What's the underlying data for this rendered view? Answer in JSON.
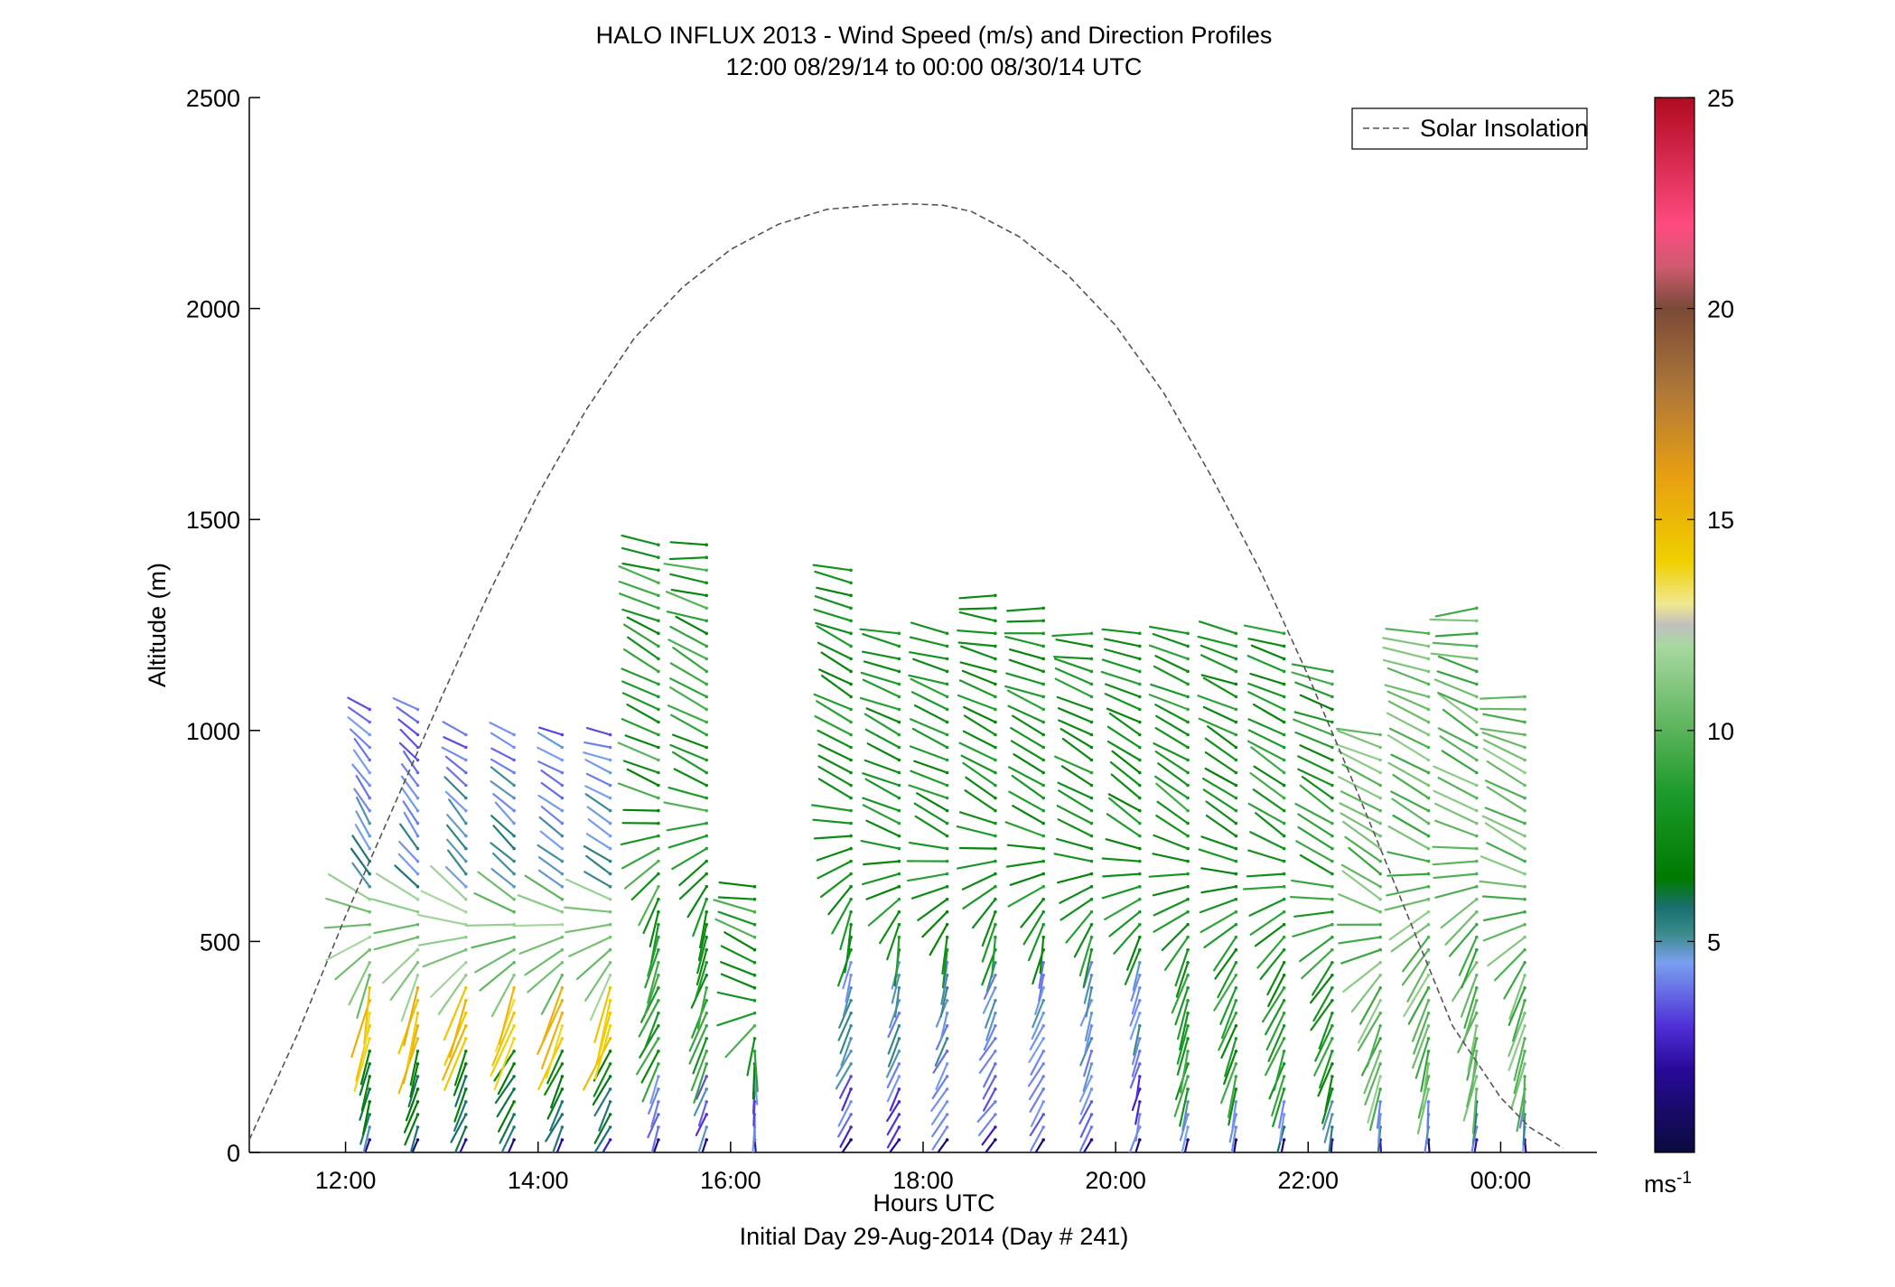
{
  "chart_data": {
    "type": "scatter",
    "title": "HALO INFLUX 2013 - Wind Speed (m/s) and Direction Profiles",
    "subtitle": "12:00 08/29/14 to 00:00 08/30/14  UTC",
    "xlabel": "Hours UTC",
    "xlabel2": "Initial Day 29-Aug-2014 (Day # 241)",
    "ylabel": "Altitude (m)",
    "xlim": [
      11.0,
      25.0
    ],
    "ylim": [
      0,
      2500
    ],
    "x_ticks": [
      {
        "value": 12,
        "label": "12:00"
      },
      {
        "value": 14,
        "label": "14:00"
      },
      {
        "value": 16,
        "label": "16:00"
      },
      {
        "value": 18,
        "label": "18:00"
      },
      {
        "value": 20,
        "label": "20:00"
      },
      {
        "value": 22,
        "label": "22:00"
      },
      {
        "value": 24,
        "label": "00:00"
      }
    ],
    "y_ticks": [
      {
        "value": 0,
        "label": "0"
      },
      {
        "value": 500,
        "label": "500"
      },
      {
        "value": 1000,
        "label": "1000"
      },
      {
        "value": 1500,
        "label": "1500"
      },
      {
        "value": 2000,
        "label": "2000"
      },
      {
        "value": 2500,
        "label": "2500"
      }
    ],
    "legend": {
      "position": "top-right",
      "entries": [
        "Solar Insolation"
      ]
    },
    "colorbar": {
      "range": [
        0,
        25
      ],
      "ticks": [
        {
          "value": 5,
          "label": "5"
        },
        {
          "value": 10,
          "label": "10"
        },
        {
          "value": 15,
          "label": "15"
        },
        {
          "value": 20,
          "label": "20"
        },
        {
          "value": 25,
          "label": "25"
        }
      ],
      "unit_label": "ms",
      "unit_exp": "-1",
      "stops": [
        {
          "v": 0,
          "color": "#0a0a3c"
        },
        {
          "v": 2,
          "color": "#2a0a9a"
        },
        {
          "v": 3,
          "color": "#5030d8"
        },
        {
          "v": 4.5,
          "color": "#7aa0f0"
        },
        {
          "v": 5.2,
          "color": "#3a8a8a"
        },
        {
          "v": 5.8,
          "color": "#1a7070"
        },
        {
          "v": 6.5,
          "color": "#007a00"
        },
        {
          "v": 8.5,
          "color": "#1c9a2a"
        },
        {
          "v": 10,
          "color": "#5ab35a"
        },
        {
          "v": 12,
          "color": "#a8d8a0"
        },
        {
          "v": 12.5,
          "color": "#c0c0c0"
        },
        {
          "v": 13,
          "color": "#f0e890"
        },
        {
          "v": 14,
          "color": "#f0d000"
        },
        {
          "v": 16,
          "color": "#e8a010"
        },
        {
          "v": 18,
          "color": "#b07838"
        },
        {
          "v": 20,
          "color": "#7a4a38"
        },
        {
          "v": 21,
          "color": "#d05a70"
        },
        {
          "v": 22,
          "color": "#ff4a80"
        },
        {
          "v": 25,
          "color": "#b00a20"
        }
      ]
    },
    "solar_insolation": {
      "x": [
        11.0,
        11.5,
        12.0,
        12.5,
        13.0,
        13.5,
        14.0,
        14.5,
        15.0,
        15.5,
        16.0,
        16.5,
        17.0,
        17.5,
        17.85,
        18.2,
        18.5,
        19.0,
        19.5,
        20.0,
        20.5,
        21.0,
        21.5,
        22.0,
        22.5,
        23.0,
        23.5,
        24.0,
        24.3,
        24.65
      ],
      "y": [
        30,
        280,
        560,
        820,
        1080,
        1330,
        1560,
        1760,
        1930,
        2050,
        2140,
        2200,
        2235,
        2245,
        2248,
        2245,
        2230,
        2170,
        2080,
        1960,
        1800,
        1600,
        1380,
        1130,
        860,
        580,
        300,
        130,
        60,
        10
      ]
    },
    "wind_profiles": [
      {
        "t": 12.25,
        "top": 1060,
        "dir": [
          200,
          195,
          190,
          330,
          330,
          300
        ]
      },
      {
        "t": 12.75,
        "top": 1060,
        "dir": [
          200,
          195,
          200,
          320,
          330,
          300
        ]
      },
      {
        "t": 13.25,
        "top": 1010,
        "dir": [
          205,
          205,
          200,
          315,
          320,
          290
        ]
      },
      {
        "t": 13.75,
        "top": 1010,
        "dir": [
          210,
          210,
          200,
          310,
          315,
          290
        ]
      },
      {
        "t": 14.25,
        "top": 1010,
        "dir": [
          205,
          205,
          200,
          305,
          310,
          290
        ]
      },
      {
        "t": 14.75,
        "top": 1010,
        "dir": [
          205,
          210,
          195,
          300,
          305,
          280
        ]
      },
      {
        "t": 15.25,
        "top": 1440,
        "dir": [
          200,
          205,
          195,
          295,
          300,
          280
        ]
      },
      {
        "t": 15.75,
        "top": 1440,
        "dir": [
          200,
          200,
          195,
          295,
          300,
          270
        ]
      },
      {
        "t": 16.25,
        "top": 630,
        "dir": [
          180,
          180,
          180,
          295,
          300,
          270
        ]
      },
      {
        "t": 17.25,
        "top": 1400,
        "dir": [
          210,
          205,
          190,
          295,
          300,
          280
        ]
      },
      {
        "t": 17.75,
        "top": 1250,
        "dir": [
          215,
          205,
          185,
          295,
          295,
          280
        ]
      },
      {
        "t": 18.25,
        "top": 1250,
        "dir": [
          220,
          205,
          190,
          295,
          295,
          280
        ]
      },
      {
        "t": 18.75,
        "top": 1330,
        "dir": [
          220,
          210,
          190,
          300,
          295,
          270
        ]
      },
      {
        "t": 19.25,
        "top": 1300,
        "dir": [
          215,
          205,
          190,
          300,
          295,
          270
        ]
      },
      {
        "t": 19.75,
        "top": 1250,
        "dir": [
          205,
          200,
          195,
          300,
          300,
          270
        ]
      },
      {
        "t": 20.25,
        "top": 1250,
        "dir": [
          195,
          195,
          200,
          305,
          300,
          280
        ]
      },
      {
        "t": 20.75,
        "top": 1250,
        "dir": [
          190,
          195,
          205,
          305,
          300,
          280
        ]
      },
      {
        "t": 21.25,
        "top": 1250,
        "dir": [
          185,
          200,
          215,
          305,
          300,
          280
        ]
      },
      {
        "t": 21.75,
        "top": 1250,
        "dir": [
          185,
          200,
          215,
          305,
          300,
          280
        ]
      },
      {
        "t": 22.25,
        "top": 1140,
        "dir": [
          185,
          200,
          215,
          305,
          300,
          280
        ]
      },
      {
        "t": 22.75,
        "top": 1010,
        "dir": [
          180,
          195,
          215,
          305,
          300,
          280
        ]
      },
      {
        "t": 23.25,
        "top": 1250,
        "dir": [
          180,
          195,
          215,
          305,
          300,
          270
        ]
      },
      {
        "t": 23.75,
        "top": 1300,
        "dir": [
          185,
          195,
          210,
          300,
          300,
          260
        ]
      },
      {
        "t": 24.25,
        "top": 1100,
        "dir": [
          180,
          190,
          205,
          295,
          300,
          260
        ]
      }
    ]
  }
}
